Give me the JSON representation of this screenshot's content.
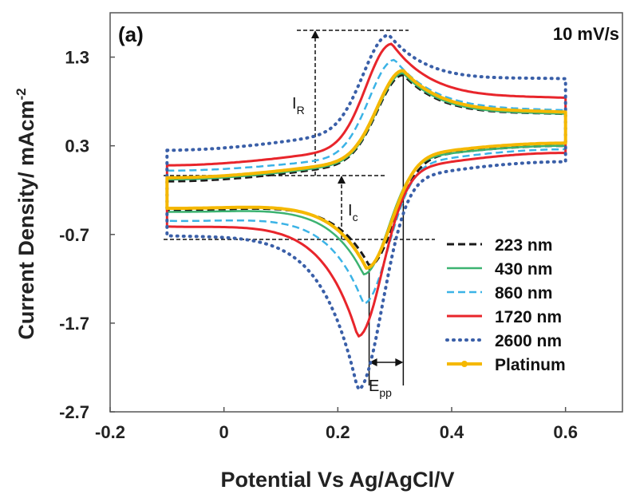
{
  "chart_data": {
    "type": "line",
    "panel_label": "(a)",
    "scan_rate_label": "10 mV/s",
    "xlabel": "Potential Vs Ag/AgCl/V",
    "ylabel": "Current Density/ mAcm",
    "ylabel_sup": "-2",
    "xlim": [
      -0.2,
      0.7
    ],
    "ylim": [
      -2.7,
      1.8
    ],
    "x_ticks": [
      -0.2,
      0,
      0.2,
      0.4,
      0.6
    ],
    "x_tick_labels": [
      "-0.2",
      "0",
      "0.2",
      "0.4",
      "0.6"
    ],
    "y_ticks": [
      -2.7,
      -1.7,
      -0.7,
      0.3,
      1.3
    ],
    "y_tick_labels": [
      "-2.7",
      "-1.7",
      "-0.7",
      "0.3",
      "1.3"
    ],
    "legend_position": "bottom-right",
    "annotations": {
      "ir_main": "I",
      "ir_sub": "R",
      "ic_main": "I",
      "ic_sub": "c",
      "epp_main": "E",
      "epp_sub": "pp"
    },
    "series": [
      {
        "name": "223 nm",
        "color": "#1a1a1a",
        "style": "dashed",
        "width": 3,
        "ox": 0.315,
        "oy": 1.1,
        "rx": 0.255,
        "ry": -1.05,
        "eS": -0.1,
        "eE": 0.6,
        "cyS": -0.1,
        "cyE": 0.3,
        "ayS": -0.1,
        "ayE": 0.32
      },
      {
        "name": "430 nm",
        "color": "#3cb371",
        "style": "solid",
        "width": 2.5,
        "ox": 0.315,
        "oy": 1.12,
        "rx": 0.245,
        "ry": -1.15,
        "eS": -0.1,
        "eE": 0.6,
        "cyS": -0.12,
        "cyE": 0.3,
        "ayS": -0.08,
        "ayE": 0.32
      },
      {
        "name": "860 nm",
        "color": "#3bb3e6",
        "style": "dashed",
        "width": 2.5,
        "ox": 0.3,
        "oy": 1.27,
        "rx": 0.245,
        "ry": -1.48,
        "eS": -0.1,
        "eE": 0.6,
        "cyS": -0.22,
        "cyE": 0.26,
        "ayS": 0.02,
        "ayE": 0.36
      },
      {
        "name": "1720 nm",
        "color": "#e8252b",
        "style": "solid",
        "width": 3,
        "ox": 0.295,
        "oy": 1.45,
        "rx": 0.235,
        "ry": -1.85,
        "eS": -0.1,
        "eE": 0.6,
        "cyS": -0.28,
        "cyE": 0.22,
        "ayS": 0.08,
        "ayE": 0.5
      },
      {
        "name": "2600 nm",
        "color": "#3a5fa8",
        "style": "dotted",
        "width": 4,
        "ox": 0.29,
        "oy": 1.55,
        "rx": 0.235,
        "ry": -2.45,
        "eS": -0.1,
        "eE": 0.6,
        "cyS": -0.38,
        "cyE": 0.12,
        "ayS": 0.25,
        "ayE": 0.72
      },
      {
        "name": "Platinum",
        "color": "#f5b800",
        "style": "solid",
        "width": 4,
        "ox": 0.315,
        "oy": 1.15,
        "rx": 0.25,
        "ry": -1.08,
        "eS": -0.1,
        "eE": 0.6,
        "cyS": -0.08,
        "cyE": 0.33,
        "ayS": -0.06,
        "ayE": 0.34
      }
    ]
  }
}
